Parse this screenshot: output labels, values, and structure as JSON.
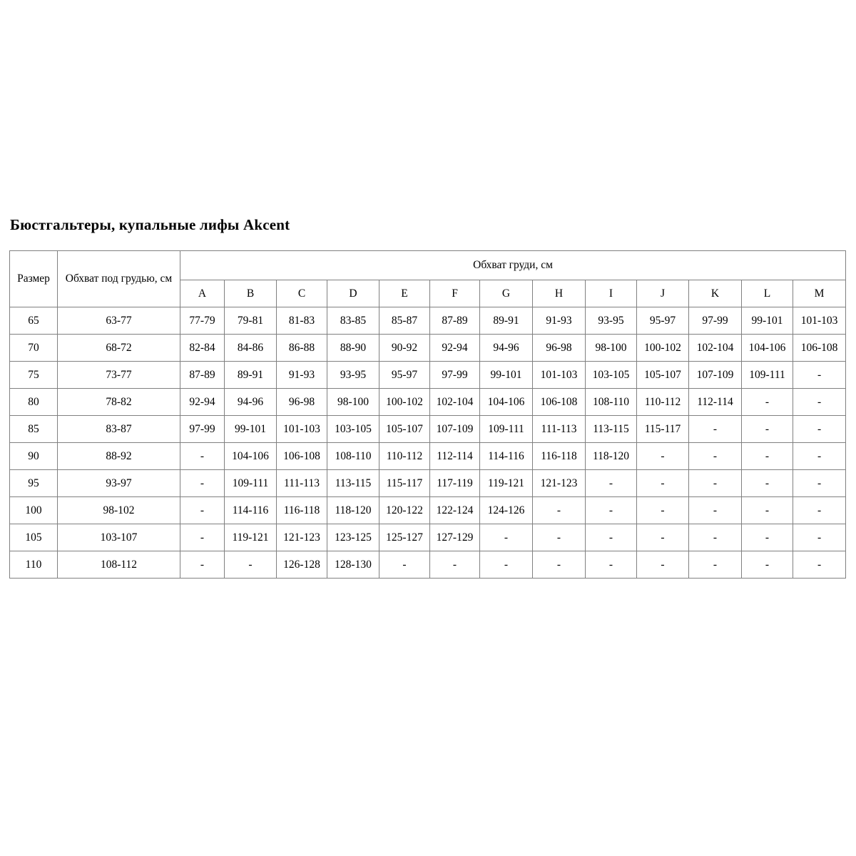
{
  "page": {
    "title": "Бюстгальтеры, купальные лифы Akcent"
  },
  "colors": {
    "background": "#ffffff",
    "table_border": "#808080",
    "text": "#000000"
  },
  "table": {
    "headers": {
      "size": "Размер",
      "underbust": "Обхват под грудью, см",
      "bust_group": "Обхват груди, см",
      "cups": [
        "A",
        "B",
        "C",
        "D",
        "E",
        "F",
        "G",
        "H",
        "I",
        "J",
        "K",
        "L",
        "M"
      ]
    },
    "rows": [
      {
        "size": "65",
        "underbust": "63-77",
        "cells": [
          "77-79",
          "79-81",
          "81-83",
          "83-85",
          "85-87",
          "87-89",
          "89-91",
          "91-93",
          "93-95",
          "95-97",
          "97-99",
          "99-101",
          "101-103"
        ]
      },
      {
        "size": "70",
        "underbust": "68-72",
        "cells": [
          "82-84",
          "84-86",
          "86-88",
          "88-90",
          "90-92",
          "92-94",
          "94-96",
          "96-98",
          "98-100",
          "100-102",
          "102-104",
          "104-106",
          "106-108"
        ]
      },
      {
        "size": "75",
        "underbust": "73-77",
        "cells": [
          "87-89",
          "89-91",
          "91-93",
          "93-95",
          "95-97",
          "97-99",
          "99-101",
          "101-103",
          "103-105",
          "105-107",
          "107-109",
          "109-111",
          "-"
        ]
      },
      {
        "size": "80",
        "underbust": "78-82",
        "cells": [
          "92-94",
          "94-96",
          "96-98",
          "98-100",
          "100-102",
          "102-104",
          "104-106",
          "106-108",
          "108-110",
          "110-112",
          "112-114",
          "-",
          "-"
        ]
      },
      {
        "size": "85",
        "underbust": "83-87",
        "cells": [
          "97-99",
          "99-101",
          "101-103",
          "103-105",
          "105-107",
          "107-109",
          "109-111",
          "111-113",
          "113-115",
          "115-117",
          "-",
          "-",
          "-"
        ]
      },
      {
        "size": "90",
        "underbust": "88-92",
        "cells": [
          "-",
          "104-106",
          "106-108",
          "108-110",
          "110-112",
          "112-114",
          "114-116",
          "116-118",
          "118-120",
          "-",
          "-",
          "-",
          "-"
        ]
      },
      {
        "size": "95",
        "underbust": "93-97",
        "cells": [
          "-",
          "109-111",
          "111-113",
          "113-115",
          "115-117",
          "117-119",
          "119-121",
          "121-123",
          "-",
          "-",
          "-",
          "-",
          "-"
        ]
      },
      {
        "size": "100",
        "underbust": "98-102",
        "cells": [
          "-",
          "114-116",
          "116-118",
          "118-120",
          "120-122",
          "122-124",
          "124-126",
          "-",
          "-",
          "-",
          "-",
          "-",
          "-"
        ]
      },
      {
        "size": "105",
        "underbust": "103-107",
        "cells": [
          "-",
          "119-121",
          "121-123",
          "123-125",
          "125-127",
          "127-129",
          "-",
          "-",
          "-",
          "-",
          "-",
          "-",
          "-"
        ]
      },
      {
        "size": "110",
        "underbust": "108-112",
        "cells": [
          "-",
          "-",
          "126-128",
          "128-130",
          "-",
          "-",
          "-",
          "-",
          "-",
          "-",
          "-",
          "-",
          "-"
        ]
      }
    ]
  }
}
